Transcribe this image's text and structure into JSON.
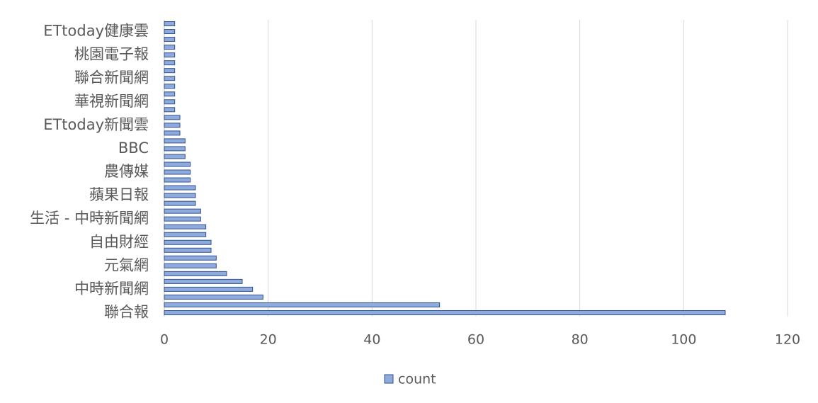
{
  "chart_data": {
    "type": "hbar",
    "categories": [
      "聯合報",
      null,
      null,
      "中時新聞網",
      null,
      null,
      "元氣網",
      null,
      null,
      "自由財經",
      null,
      null,
      "生活 - 中時新聞網",
      null,
      null,
      "蘋果日報",
      null,
      null,
      "農傳媒",
      null,
      null,
      "BBC",
      null,
      null,
      "ETtoday新聞雲",
      null,
      null,
      "華視新聞網",
      null,
      null,
      "聯合新聞網",
      null,
      null,
      "桃園電子報",
      null,
      null,
      "ETtoday健康雲",
      null
    ],
    "series": [
      {
        "name": "count",
        "color": "#8faadc",
        "values": [
          108,
          53,
          19,
          17,
          15,
          12,
          10,
          10,
          9,
          9,
          8,
          8,
          7,
          7,
          6,
          6,
          6,
          5,
          5,
          5,
          4,
          4,
          4,
          3,
          3,
          3,
          2,
          2,
          2,
          2,
          2,
          2,
          2,
          2,
          2,
          2,
          2,
          2
        ]
      }
    ],
    "xlim": [
      0,
      120
    ],
    "xticks": [
      0,
      20,
      40,
      60,
      80,
      100,
      120
    ],
    "grid": true,
    "legend": "bottom"
  }
}
